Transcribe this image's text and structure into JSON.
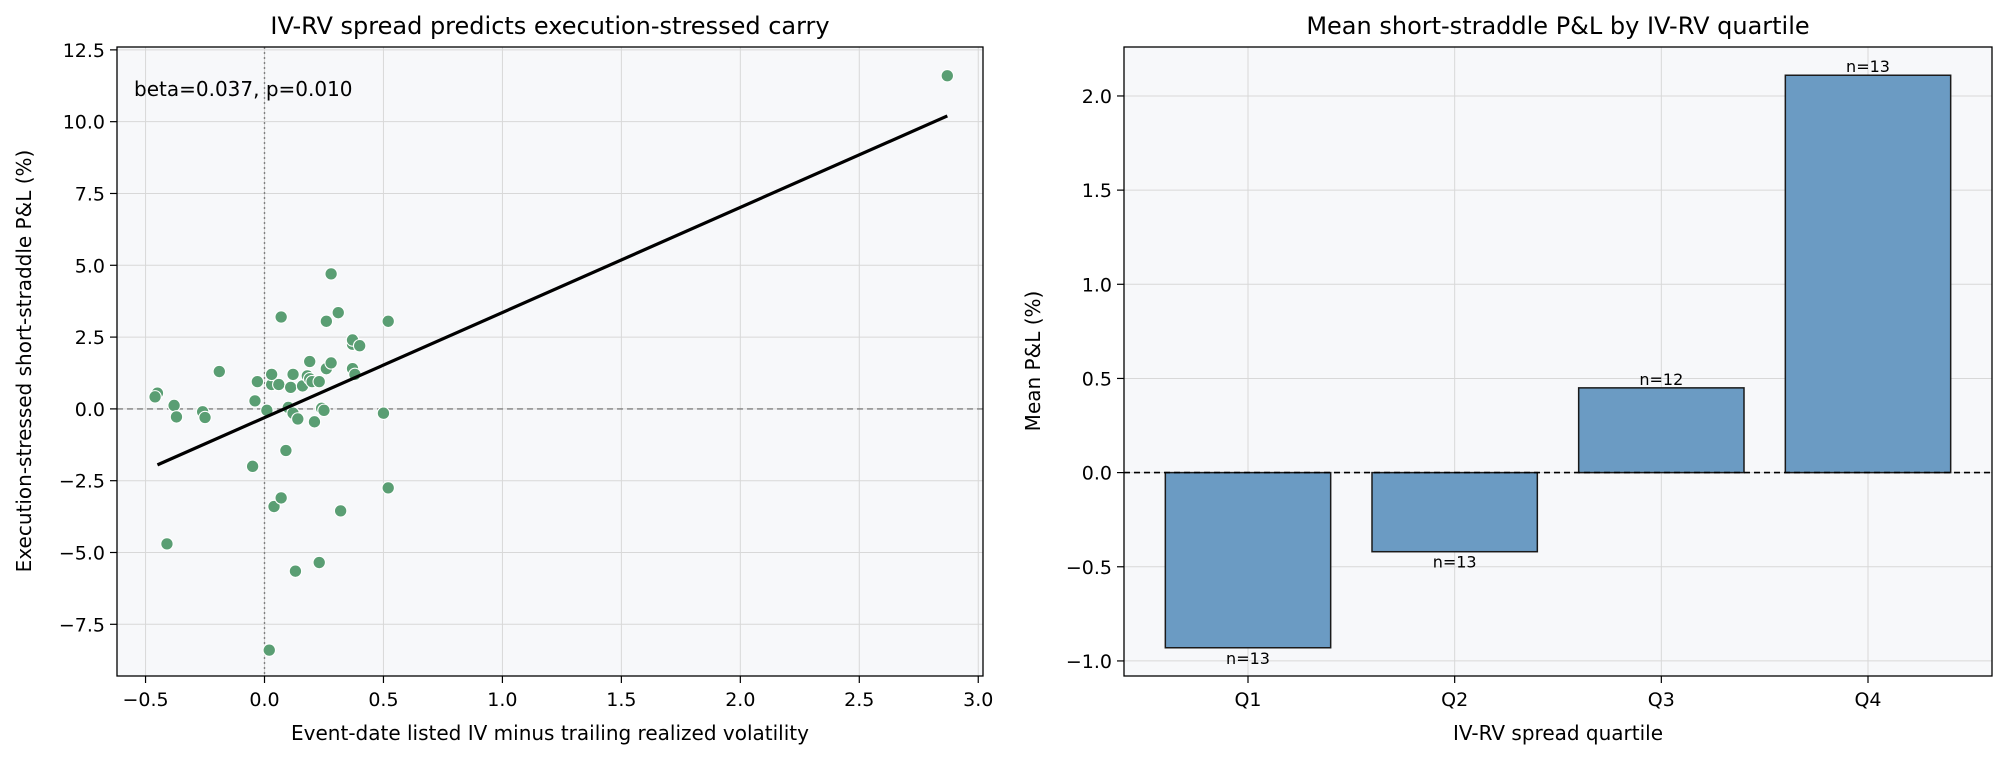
{
  "chart_data": [
    {
      "type": "scatter",
      "title": "IV-RV spread predicts execution-stressed carry",
      "xlabel": "Event-date listed IV minus trailing realized volatility",
      "ylabel": "Execution-stressed short-straddle P&L (%)",
      "xlim": [
        -0.62,
        3.02
      ],
      "ylim": [
        -9.3,
        12.6
      ],
      "xticks": [
        -0.5,
        0.0,
        0.5,
        1.0,
        1.5,
        2.0,
        2.5,
        3.0
      ],
      "xtick_labels": [
        "−0.5",
        "0.0",
        "0.5",
        "1.0",
        "1.5",
        "2.0",
        "2.5",
        "3.0"
      ],
      "yticks": [
        -7.5,
        -5.0,
        -2.5,
        0.0,
        2.5,
        5.0,
        7.5,
        10.0,
        12.5
      ],
      "ytick_labels": [
        "−7.5",
        "−5.0",
        "−2.5",
        "0.0",
        "2.5",
        "5.0",
        "7.5",
        "10.0",
        "12.5"
      ],
      "grid": true,
      "annotation": "beta=0.037, p=0.010",
      "point_color": "#5a9e73",
      "fit_line": {
        "x": [
          -0.45,
          2.87
        ],
        "y": [
          -1.95,
          10.2
        ],
        "color": "#000000"
      },
      "points": [
        {
          "x": -0.45,
          "y": 0.55
        },
        {
          "x": -0.46,
          "y": 0.42
        },
        {
          "x": -0.38,
          "y": 0.12
        },
        {
          "x": -0.37,
          "y": -0.28
        },
        {
          "x": -0.26,
          "y": -0.1
        },
        {
          "x": -0.25,
          "y": -0.3
        },
        {
          "x": -0.41,
          "y": -4.7
        },
        {
          "x": -0.19,
          "y": 1.3
        },
        {
          "x": -0.05,
          "y": -2.0
        },
        {
          "x": -0.04,
          "y": 0.28
        },
        {
          "x": -0.03,
          "y": 0.95
        },
        {
          "x": 0.01,
          "y": -0.05
        },
        {
          "x": 0.02,
          "y": -8.4
        },
        {
          "x": 0.03,
          "y": 0.85
        },
        {
          "x": 0.03,
          "y": 1.2
        },
        {
          "x": 0.04,
          "y": -3.4
        },
        {
          "x": 0.06,
          "y": 0.85
        },
        {
          "x": 0.07,
          "y": -3.1
        },
        {
          "x": 0.07,
          "y": 3.2
        },
        {
          "x": 0.09,
          "y": -1.45
        },
        {
          "x": 0.1,
          "y": 0.05
        },
        {
          "x": 0.11,
          "y": 0.75
        },
        {
          "x": 0.12,
          "y": 1.2
        },
        {
          "x": 0.12,
          "y": -0.15
        },
        {
          "x": 0.13,
          "y": -5.65
        },
        {
          "x": 0.14,
          "y": -0.35
        },
        {
          "x": 0.16,
          "y": 0.8
        },
        {
          "x": 0.18,
          "y": 1.15
        },
        {
          "x": 0.19,
          "y": 1.05
        },
        {
          "x": 0.19,
          "y": 1.65
        },
        {
          "x": 0.2,
          "y": 0.95
        },
        {
          "x": 0.21,
          "y": -0.45
        },
        {
          "x": 0.23,
          "y": -5.35
        },
        {
          "x": 0.23,
          "y": 0.95
        },
        {
          "x": 0.24,
          "y": 0.02
        },
        {
          "x": 0.25,
          "y": -0.05
        },
        {
          "x": 0.26,
          "y": 1.4
        },
        {
          "x": 0.26,
          "y": 3.05
        },
        {
          "x": 0.28,
          "y": 1.6
        },
        {
          "x": 0.28,
          "y": 4.7
        },
        {
          "x": 0.31,
          "y": 3.35
        },
        {
          "x": 0.32,
          "y": -3.55
        },
        {
          "x": 0.37,
          "y": 1.4
        },
        {
          "x": 0.37,
          "y": 2.25
        },
        {
          "x": 0.37,
          "y": 2.4
        },
        {
          "x": 0.38,
          "y": 1.2
        },
        {
          "x": 0.4,
          "y": 2.2
        },
        {
          "x": 0.5,
          "y": -0.15
        },
        {
          "x": 0.52,
          "y": 3.05
        },
        {
          "x": 0.52,
          "y": -2.75
        },
        {
          "x": 2.87,
          "y": 11.6
        }
      ]
    },
    {
      "type": "bar",
      "title": "Mean short-straddle P&L by IV-RV quartile",
      "xlabel": "IV-RV spread quartile",
      "ylabel": "Mean P&L (%)",
      "categories": [
        "Q1",
        "Q2",
        "Q3",
        "Q4"
      ],
      "values": [
        -0.93,
        -0.42,
        0.45,
        2.11
      ],
      "counts": [
        "n=13",
        "n=13",
        "n=12",
        "n=13"
      ],
      "ylim": [
        -1.08,
        2.26
      ],
      "yticks": [
        -1.0,
        -0.5,
        0.0,
        0.5,
        1.0,
        1.5,
        2.0
      ],
      "ytick_labels": [
        "−1.0",
        "−0.5",
        "0.0",
        "0.5",
        "1.0",
        "1.5",
        "2.0"
      ],
      "grid": true,
      "bar_color": "#6b9bc3"
    }
  ]
}
